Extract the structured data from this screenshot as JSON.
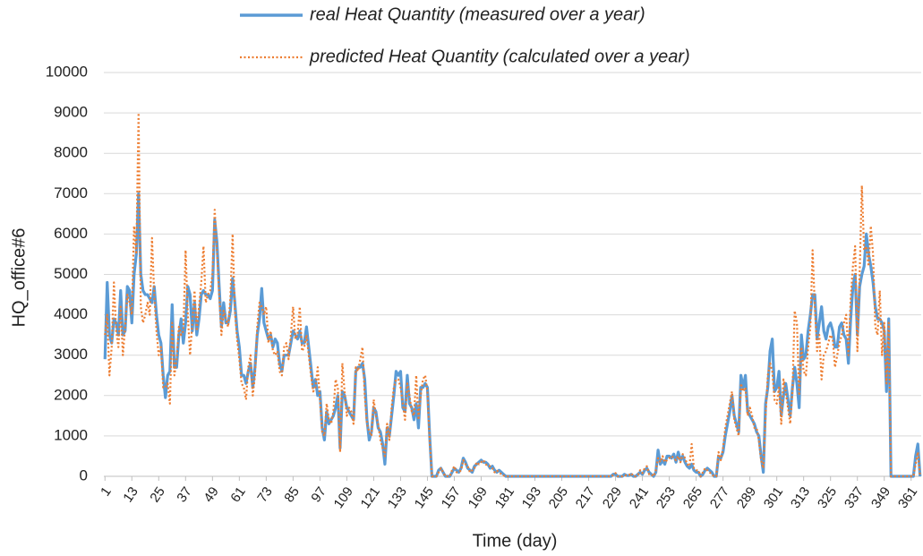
{
  "chart_data": {
    "type": "line",
    "x_label": "Time (day)",
    "y_label": "HQ_office#6",
    "x": [
      1,
      2,
      3,
      4,
      5,
      6,
      7,
      8,
      9,
      10,
      11,
      12,
      13,
      14,
      15,
      16,
      17,
      18,
      19,
      20,
      21,
      22,
      23,
      24,
      25,
      26,
      27,
      28,
      29,
      30,
      31,
      32,
      33,
      34,
      35,
      36,
      37,
      38,
      39,
      40,
      41,
      42,
      43,
      44,
      45,
      46,
      47,
      48,
      49,
      50,
      51,
      52,
      53,
      54,
      55,
      56,
      57,
      58,
      59,
      60,
      61,
      62,
      63,
      64,
      65,
      66,
      67,
      68,
      69,
      70,
      71,
      72,
      73,
      74,
      75,
      76,
      77,
      78,
      79,
      80,
      81,
      82,
      83,
      84,
      85,
      86,
      87,
      88,
      89,
      90,
      91,
      92,
      93,
      94,
      95,
      96,
      97,
      98,
      99,
      100,
      101,
      102,
      103,
      104,
      105,
      106,
      107,
      108,
      109,
      110,
      111,
      112,
      113,
      114,
      115,
      116,
      117,
      118,
      119,
      120,
      121,
      122,
      123,
      124,
      125,
      126,
      127,
      128,
      129,
      130,
      131,
      132,
      133,
      134,
      135,
      136,
      137,
      138,
      139,
      140,
      141,
      142,
      143,
      144,
      145,
      146,
      147,
      148,
      149,
      150,
      151,
      152,
      153,
      154,
      155,
      156,
      157,
      158,
      159,
      160,
      161,
      162,
      163,
      164,
      165,
      166,
      167,
      168,
      169,
      170,
      171,
      172,
      173,
      174,
      175,
      176,
      177,
      178,
      179,
      180,
      181,
      182,
      183,
      184,
      185,
      186,
      187,
      188,
      189,
      190,
      191,
      192,
      193,
      194,
      195,
      196,
      197,
      198,
      199,
      200,
      201,
      202,
      203,
      204,
      205,
      206,
      207,
      208,
      209,
      210,
      211,
      212,
      213,
      214,
      215,
      216,
      217,
      218,
      219,
      220,
      221,
      222,
      223,
      224,
      225,
      226,
      227,
      228,
      229,
      230,
      231,
      232,
      233,
      234,
      235,
      236,
      237,
      238,
      239,
      240,
      241,
      242,
      243,
      244,
      245,
      246,
      247,
      248,
      249,
      250,
      251,
      252,
      253,
      254,
      255,
      256,
      257,
      258,
      259,
      260,
      261,
      262,
      263,
      264,
      265,
      266,
      267,
      268,
      269,
      270,
      271,
      272,
      273,
      274,
      275,
      276,
      277,
      278,
      279,
      280,
      281,
      282,
      283,
      284,
      285,
      286,
      287,
      288,
      289,
      290,
      291,
      292,
      293,
      294,
      295,
      296,
      297,
      298,
      299,
      300,
      301,
      302,
      303,
      304,
      305,
      306,
      307,
      308,
      309,
      310,
      311,
      312,
      313,
      314,
      315,
      316,
      317,
      318,
      319,
      320,
      321,
      322,
      323,
      324,
      325,
      326,
      327,
      328,
      329,
      330,
      331,
      332,
      333,
      334,
      335,
      336,
      337,
      338,
      339,
      340,
      341,
      342,
      343,
      344,
      345,
      346,
      347,
      348,
      349,
      350,
      351,
      352,
      353,
      354,
      355,
      356,
      357,
      358,
      359,
      360,
      361,
      362,
      363,
      364,
      365
    ],
    "series": [
      {
        "name": "real Heat Quantity (measured over a year)",
        "color": "#5b9bd5",
        "style": "solid",
        "values": [
          2900,
          4800,
          3500,
          3300,
          3900,
          3800,
          3500,
          4600,
          3500,
          3600,
          4700,
          4600,
          3800,
          5000,
          5500,
          7000,
          5000,
          4600,
          4500,
          4500,
          4400,
          4300,
          4700,
          4000,
          3500,
          3300,
          2500,
          1950,
          2500,
          2600,
          4250,
          2700,
          2700,
          3500,
          3900,
          3300,
          3800,
          4700,
          4500,
          3600,
          4300,
          3500,
          3900,
          4500,
          4600,
          4500,
          4500,
          4400,
          4600,
          6350,
          5800,
          4700,
          3700,
          4300,
          3800,
          3800,
          4100,
          4900,
          4300,
          3600,
          3200,
          2500,
          2500,
          2300,
          2600,
          2800,
          2200,
          2700,
          3500,
          3900,
          4650,
          3800,
          3600,
          3400,
          3500,
          3200,
          3400,
          3300,
          2800,
          2600,
          3000,
          3000,
          3000,
          3300,
          3600,
          3500,
          3400,
          3600,
          3300,
          3300,
          3700,
          3200,
          2700,
          2200,
          2400,
          2000,
          2100,
          1200,
          900,
          1600,
          1300,
          1400,
          1500,
          1700,
          2000,
          700,
          2100,
          2000,
          1700,
          1600,
          1500,
          1400,
          2600,
          2700,
          2700,
          2800,
          2400,
          1400,
          900,
          1100,
          1700,
          1600,
          1200,
          1100,
          800,
          300,
          1200,
          1000,
          1500,
          2000,
          2600,
          2500,
          2600,
          1700,
          1600,
          2500,
          1800,
          1700,
          1400,
          1800,
          1200,
          2200,
          2200,
          2300,
          2200,
          1000,
          0,
          0,
          0,
          150,
          200,
          100,
          0,
          0,
          0,
          100,
          200,
          150,
          100,
          200,
          450,
          350,
          200,
          150,
          100,
          250,
          300,
          350,
          400,
          350,
          350,
          300,
          200,
          250,
          150,
          100,
          150,
          100,
          50,
          0,
          0,
          0,
          0,
          0,
          0,
          0,
          0,
          0,
          0,
          0,
          0,
          0,
          0,
          0,
          0,
          0,
          0,
          0,
          0,
          0,
          0,
          0,
          0,
          0,
          0,
          0,
          0,
          0,
          0,
          0,
          0,
          0,
          0,
          0,
          0,
          0,
          0,
          0,
          0,
          0,
          0,
          0,
          0,
          0,
          0,
          0,
          0,
          50,
          50,
          0,
          0,
          0,
          50,
          20,
          20,
          50,
          0,
          0,
          50,
          100,
          50,
          150,
          200,
          100,
          50,
          0,
          100,
          650,
          300,
          400,
          300,
          500,
          500,
          450,
          550,
          350,
          600,
          400,
          500,
          350,
          250,
          200,
          300,
          150,
          100,
          100,
          0,
          50,
          150,
          200,
          150,
          100,
          0,
          0,
          500,
          450,
          600,
          1000,
          1300,
          1600,
          2000,
          1500,
          1300,
          1100,
          2500,
          2200,
          2500,
          1600,
          1500,
          1400,
          1300,
          1100,
          1000,
          500,
          100,
          1800,
          2200,
          3100,
          3400,
          2100,
          2200,
          2600,
          1500,
          2000,
          2300,
          1900,
          1500,
          2200,
          2700,
          2300,
          1700,
          3500,
          2900,
          3000,
          3600,
          4000,
          4500,
          4500,
          3400,
          3800,
          4200,
          3600,
          3400,
          3700,
          3800,
          3600,
          3200,
          3200,
          3700,
          3800,
          3500,
          3400,
          2800,
          3900,
          4700,
          5000,
          3500,
          4700,
          5000,
          5200,
          6000,
          5500,
          5200,
          4800,
          4200,
          3900,
          3900,
          3800,
          3600,
          2100,
          3900,
          0,
          0,
          0,
          0,
          0,
          0,
          0,
          0,
          0,
          0,
          0,
          500,
          800,
          0
        ]
      },
      {
        "name": "predicted Heat Quantity (calculated over a year)",
        "color": "#ed7d31",
        "style": "dotted",
        "values": [
          3500,
          4000,
          2500,
          3200,
          4800,
          3600,
          3200,
          4200,
          3000,
          3700,
          4500,
          4300,
          4000,
          6200,
          5500,
          9000,
          4200,
          3800,
          4000,
          4300,
          4000,
          5900,
          4500,
          3600,
          3000,
          3200,
          2200,
          2200,
          2300,
          1800,
          3800,
          2500,
          2900,
          3700,
          3500,
          3600,
          5600,
          4000,
          3000,
          3800,
          4600,
          3600,
          4200,
          4800,
          5700,
          4300,
          4500,
          4600,
          5000,
          6600,
          5600,
          4500,
          3500,
          4100,
          3900,
          3700,
          4400,
          6000,
          4100,
          3400,
          2900,
          2300,
          2200,
          1900,
          2700,
          3000,
          2000,
          2500,
          3700,
          4300,
          4200,
          4000,
          4200,
          3300,
          3600,
          3100,
          3000,
          3100,
          2600,
          2500,
          3200,
          3300,
          2900,
          3500,
          4200,
          3400,
          3500,
          4200,
          3100,
          3200,
          3500,
          3000,
          2500,
          2100,
          2200,
          2700,
          1900,
          1100,
          1000,
          1800,
          1400,
          1300,
          1600,
          2400,
          2200,
          600,
          2800,
          2100,
          1500,
          1700,
          1600,
          1300,
          2700,
          2600,
          2900,
          3200,
          2000,
          1300,
          1100,
          1000,
          1900,
          1500,
          1300,
          900,
          700,
          500,
          1300,
          900,
          1700,
          2200,
          2400,
          2400,
          2200,
          1800,
          1400,
          2300,
          2000,
          1600,
          1500,
          2500,
          1400,
          2000,
          2400,
          2500,
          2100,
          900,
          0,
          0,
          0,
          100,
          200,
          100,
          0,
          0,
          0,
          150,
          250,
          100,
          100,
          150,
          400,
          300,
          250,
          100,
          150,
          200,
          350,
          300,
          350,
          400,
          300,
          250,
          250,
          200,
          100,
          150,
          100,
          50,
          20,
          0,
          0,
          0,
          0,
          0,
          0,
          0,
          0,
          0,
          0,
          0,
          0,
          0,
          0,
          0,
          0,
          0,
          0,
          0,
          0,
          0,
          0,
          0,
          0,
          0,
          0,
          0,
          0,
          0,
          0,
          0,
          0,
          0,
          0,
          0,
          0,
          0,
          0,
          0,
          0,
          0,
          0,
          0,
          0,
          0,
          0,
          0,
          0,
          30,
          80,
          0,
          0,
          0,
          30,
          20,
          30,
          80,
          0,
          0,
          30,
          150,
          80,
          200,
          250,
          50,
          50,
          0,
          150,
          450,
          350,
          500,
          350,
          400,
          450,
          500,
          450,
          400,
          500,
          350,
          550,
          450,
          300,
          250,
          800,
          200,
          150,
          150,
          0,
          100,
          200,
          150,
          100,
          50,
          0,
          0,
          600,
          400,
          700,
          1200,
          1500,
          1800,
          2100,
          1400,
          1200,
          1000,
          2300,
          2100,
          2200,
          1500,
          1700,
          1500,
          1200,
          1200,
          900,
          400,
          200,
          1500,
          2500,
          2800,
          2600,
          1900,
          1800,
          2200,
          1300,
          2400,
          2100,
          1700,
          1300,
          2100,
          4100,
          3800,
          2000,
          3200,
          2600,
          2500,
          3200,
          3700,
          5600,
          4200,
          3100,
          3500,
          2400,
          3000,
          3100,
          3300,
          3500,
          3400,
          2700,
          3000,
          3300,
          3500,
          3800,
          4000,
          3000,
          4400,
          5200,
          5700,
          3100,
          5000,
          7200,
          5600,
          5700,
          5200,
          6200,
          5500,
          3700,
          3500,
          4600,
          3000,
          3800,
          2300,
          3800,
          0,
          0,
          0,
          0,
          0,
          0,
          0,
          0,
          0,
          0,
          0,
          300,
          600,
          0
        ]
      }
    ],
    "xlim": [
      0.5,
      365.5
    ],
    "xticks": [
      1,
      13,
      25,
      37,
      49,
      61,
      73,
      85,
      97,
      109,
      121,
      133,
      145,
      157,
      169,
      181,
      193,
      205,
      217,
      229,
      241,
      253,
      265,
      277,
      289,
      301,
      313,
      325,
      337,
      349,
      361
    ],
    "ylim": [
      0,
      10000
    ],
    "yticks": [
      0,
      1000,
      2000,
      3000,
      4000,
      5000,
      6000,
      7000,
      8000,
      9000,
      10000
    ],
    "grid": true,
    "legend": "top"
  }
}
